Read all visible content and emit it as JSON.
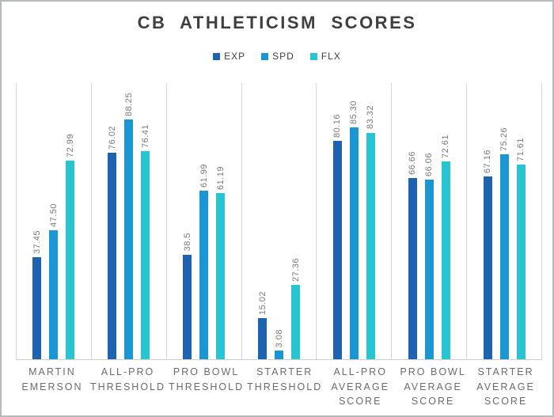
{
  "title": "CB ATHLETICISM SCORES",
  "chart_data": {
    "type": "bar",
    "title": "CB ATHLETICISM SCORES",
    "categories": [
      "MARTIN EMERSON",
      "ALL-PRO THRESHOLD",
      "PRO BOWL THRESHOLD",
      "STARTER THRESHOLD",
      "ALL-PRO AVERAGE SCORE",
      "PRO BOWL AVERAGE SCORE",
      "STARTER AVERAGE SCORE"
    ],
    "series": [
      {
        "name": "EXP",
        "color": "#1e63b2",
        "values": [
          37.45,
          76.02,
          38.5,
          15.02,
          80.16,
          66.66,
          67.16
        ],
        "labels": [
          "37.45",
          "76.02",
          "38.5",
          "15.02",
          "80.16",
          "66.66",
          "67.16"
        ]
      },
      {
        "name": "SPD",
        "color": "#1a96d5",
        "values": [
          47.5,
          88.25,
          61.99,
          3.08,
          85.3,
          66.06,
          75.26
        ],
        "labels": [
          "47.50",
          "88.25",
          "61.99",
          "3.08",
          "85.30",
          "66.06",
          "75.26"
        ]
      },
      {
        "name": "FLX",
        "color": "#27c4d2",
        "values": [
          72.99,
          76.41,
          61.19,
          27.36,
          83.32,
          72.61,
          71.61
        ],
        "labels": [
          "72.99",
          "76.41",
          "61.19",
          "27.36",
          "83.32",
          "72.61",
          "71.61"
        ]
      }
    ],
    "ylim": [
      0,
      101.5
    ],
    "xlabel": "",
    "ylabel": "",
    "grid": "vertical-category-separators-only",
    "y_axis_labels_visible": false,
    "value_labels_rotated_90": true,
    "legend_position": "top-center"
  },
  "colors": {
    "frame_border": "#b5babd",
    "grid_line": "#d6d6d6",
    "axis_line": "#cfcfcf",
    "title_text": "#3f3f3f",
    "legend_text": "#404040",
    "value_label_text": "#7a7a7a",
    "category_text": "#6b6b6b",
    "background": "#ffffff"
  }
}
